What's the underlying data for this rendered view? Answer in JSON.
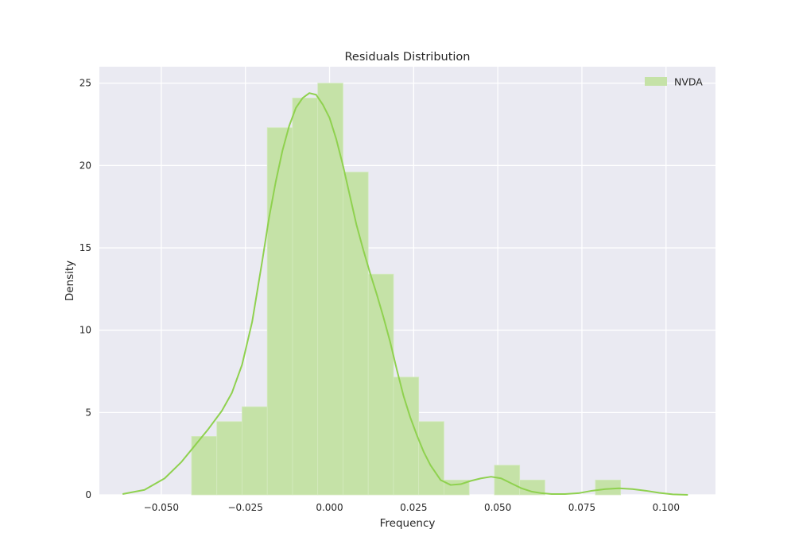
{
  "chart_data": {
    "type": "histogram",
    "title": "Residuals Distribution",
    "xlabel": "Frequency",
    "ylabel": "Density",
    "xlim": [
      -0.0684,
      0.1147
    ],
    "ylim": [
      0,
      26
    ],
    "x_ticks": [
      -0.05,
      -0.025,
      0.0,
      0.025,
      0.05,
      0.075,
      0.1
    ],
    "x_tick_labels": [
      "−0.050",
      "−0.025",
      "0.000",
      "0.025",
      "0.050",
      "0.075",
      "0.100"
    ],
    "y_ticks": [
      0,
      5,
      10,
      15,
      20,
      25
    ],
    "y_tick_labels": [
      "0",
      "5",
      "10",
      "15",
      "20",
      "25"
    ],
    "grid": true,
    "legend_position": "top-right",
    "colors": {
      "plot_bg": "#eaeaf2",
      "grid": "#ffffff",
      "series": "#8fd14f",
      "bar_fill": "#c5e2a7"
    },
    "series": [
      {
        "name": "NVDA",
        "bins": [
          {
            "x0": -0.041,
            "x1": -0.0335,
            "density": 3.55
          },
          {
            "x0": -0.0335,
            "x1": -0.026,
            "density": 4.45
          },
          {
            "x0": -0.026,
            "x1": -0.0185,
            "density": 5.35
          },
          {
            "x0": -0.0185,
            "x1": -0.011,
            "density": 22.3
          },
          {
            "x0": -0.011,
            "x1": -0.0035,
            "density": 24.1
          },
          {
            "x0": -0.0035,
            "x1": 0.004,
            "density": 25.0
          },
          {
            "x0": 0.004,
            "x1": 0.0115,
            "density": 19.6
          },
          {
            "x0": 0.0115,
            "x1": 0.019,
            "density": 13.4
          },
          {
            "x0": 0.019,
            "x1": 0.0265,
            "density": 7.15
          },
          {
            "x0": 0.0265,
            "x1": 0.034,
            "density": 4.45
          },
          {
            "x0": 0.034,
            "x1": 0.0415,
            "density": 0.9
          },
          {
            "x0": 0.0415,
            "x1": 0.049,
            "density": 0.0
          },
          {
            "x0": 0.049,
            "x1": 0.0565,
            "density": 1.8
          },
          {
            "x0": 0.0565,
            "x1": 0.064,
            "density": 0.9
          },
          {
            "x0": 0.064,
            "x1": 0.0715,
            "density": 0.0
          },
          {
            "x0": 0.0715,
            "x1": 0.079,
            "density": 0.0
          },
          {
            "x0": 0.079,
            "x1": 0.0865,
            "density": 0.9
          }
        ],
        "kde": {
          "x": [
            -0.0615,
            -0.055,
            -0.049,
            -0.044,
            -0.04,
            -0.036,
            -0.032,
            -0.029,
            -0.026,
            -0.023,
            -0.02,
            -0.018,
            -0.016,
            -0.014,
            -0.012,
            -0.01,
            -0.008,
            -0.006,
            -0.004,
            -0.002,
            0.0,
            0.002,
            0.004,
            0.006,
            0.008,
            0.01,
            0.012,
            0.014,
            0.016,
            0.018,
            0.02,
            0.022,
            0.024,
            0.026,
            0.028,
            0.03,
            0.033,
            0.036,
            0.039,
            0.042,
            0.045,
            0.048,
            0.051,
            0.054,
            0.057,
            0.06,
            0.063,
            0.066,
            0.07,
            0.074,
            0.078,
            0.082,
            0.086,
            0.09,
            0.094,
            0.098,
            0.102,
            0.1065
          ],
          "y": [
            0.05,
            0.3,
            1.0,
            2.0,
            3.0,
            4.0,
            5.1,
            6.2,
            7.9,
            10.5,
            14.2,
            16.8,
            19.0,
            20.9,
            22.4,
            23.5,
            24.1,
            24.4,
            24.3,
            23.7,
            22.9,
            21.6,
            20.0,
            18.2,
            16.4,
            14.9,
            13.5,
            12.2,
            10.8,
            9.3,
            7.6,
            6.0,
            4.7,
            3.6,
            2.6,
            1.8,
            0.9,
            0.6,
            0.65,
            0.85,
            1.0,
            1.1,
            1.0,
            0.7,
            0.4,
            0.2,
            0.1,
            0.05,
            0.05,
            0.1,
            0.25,
            0.35,
            0.4,
            0.35,
            0.25,
            0.12,
            0.03,
            0.0
          ]
        }
      }
    ]
  }
}
